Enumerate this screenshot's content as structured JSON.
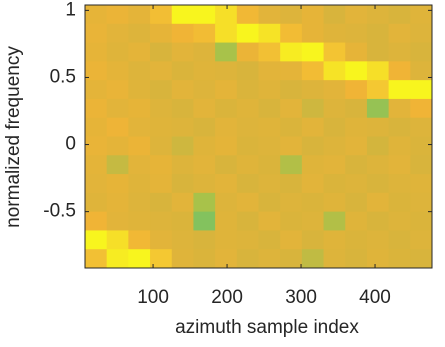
{
  "chart_data": {
    "type": "heatmap",
    "xlabel": "azimuth sample index",
    "ylabel": "normalized frequency",
    "xlim": [
      8,
      477
    ],
    "ylim": [
      -0.92,
      1.04
    ],
    "xticks": [
      100,
      200,
      300,
      400
    ],
    "yticks": [
      -0.5,
      0,
      0.5,
      1
    ],
    "clim": [
      0.5,
      1
    ],
    "colormap": [
      "#4cc27c",
      "#a8c24a",
      "#d8b43c",
      "#f0b436",
      "#f4c832",
      "#f8f51e"
    ],
    "z": [
      [
        0.76,
        0.78,
        0.75,
        0.85,
        1.0,
        1.0,
        0.95,
        0.82,
        0.74,
        0.72,
        0.76,
        0.7,
        0.74,
        0.72,
        0.7,
        0.73
      ],
      [
        0.77,
        0.74,
        0.72,
        0.76,
        0.8,
        0.84,
        0.95,
        1.0,
        0.96,
        0.84,
        0.76,
        0.73,
        0.72,
        0.7,
        0.74,
        0.72
      ],
      [
        0.76,
        0.73,
        0.75,
        0.7,
        0.74,
        0.72,
        0.6,
        0.78,
        0.86,
        0.98,
        1.0,
        0.88,
        0.76,
        0.7,
        0.72,
        0.7
      ],
      [
        0.78,
        0.75,
        0.72,
        0.74,
        0.71,
        0.73,
        0.72,
        0.7,
        0.74,
        0.75,
        0.84,
        0.96,
        1.0,
        0.95,
        0.8,
        0.72
      ],
      [
        0.75,
        0.77,
        0.73,
        0.7,
        0.74,
        0.72,
        0.75,
        0.71,
        0.73,
        0.7,
        0.72,
        0.74,
        0.8,
        0.9,
        1.0,
        1.0
      ],
      [
        0.78,
        0.74,
        0.76,
        0.72,
        0.7,
        0.74,
        0.71,
        0.73,
        0.7,
        0.74,
        0.68,
        0.72,
        0.7,
        0.58,
        0.74,
        0.8
      ],
      [
        0.76,
        0.79,
        0.74,
        0.73,
        0.72,
        0.7,
        0.74,
        0.72,
        0.73,
        0.71,
        0.74,
        0.7,
        0.73,
        0.72,
        0.7,
        0.72
      ],
      [
        0.77,
        0.75,
        0.78,
        0.72,
        0.68,
        0.73,
        0.75,
        0.71,
        0.72,
        0.74,
        0.7,
        0.72,
        0.74,
        0.69,
        0.73,
        0.71
      ],
      [
        0.75,
        0.66,
        0.74,
        0.76,
        0.72,
        0.74,
        0.7,
        0.73,
        0.71,
        0.62,
        0.73,
        0.74,
        0.7,
        0.72,
        0.74,
        0.7
      ],
      [
        0.74,
        0.76,
        0.73,
        0.75,
        0.7,
        0.72,
        0.74,
        0.7,
        0.72,
        0.7,
        0.74,
        0.71,
        0.72,
        0.7,
        0.72,
        0.73
      ],
      [
        0.73,
        0.75,
        0.72,
        0.7,
        0.74,
        0.6,
        0.72,
        0.74,
        0.7,
        0.72,
        0.71,
        0.73,
        0.7,
        0.74,
        0.71,
        0.72
      ],
      [
        0.8,
        0.74,
        0.73,
        0.72,
        0.71,
        0.56,
        0.73,
        0.7,
        0.74,
        0.71,
        0.72,
        0.62,
        0.73,
        0.7,
        0.72,
        0.71
      ],
      [
        1.0,
        0.95,
        0.82,
        0.74,
        0.72,
        0.7,
        0.73,
        0.72,
        0.7,
        0.74,
        0.7,
        0.73,
        0.71,
        0.72,
        0.7,
        0.72
      ],
      [
        0.86,
        0.98,
        1.0,
        0.9,
        0.73,
        0.71,
        0.74,
        0.7,
        0.72,
        0.7,
        0.65,
        0.72,
        0.7,
        0.73,
        0.71,
        0.7
      ]
    ]
  }
}
